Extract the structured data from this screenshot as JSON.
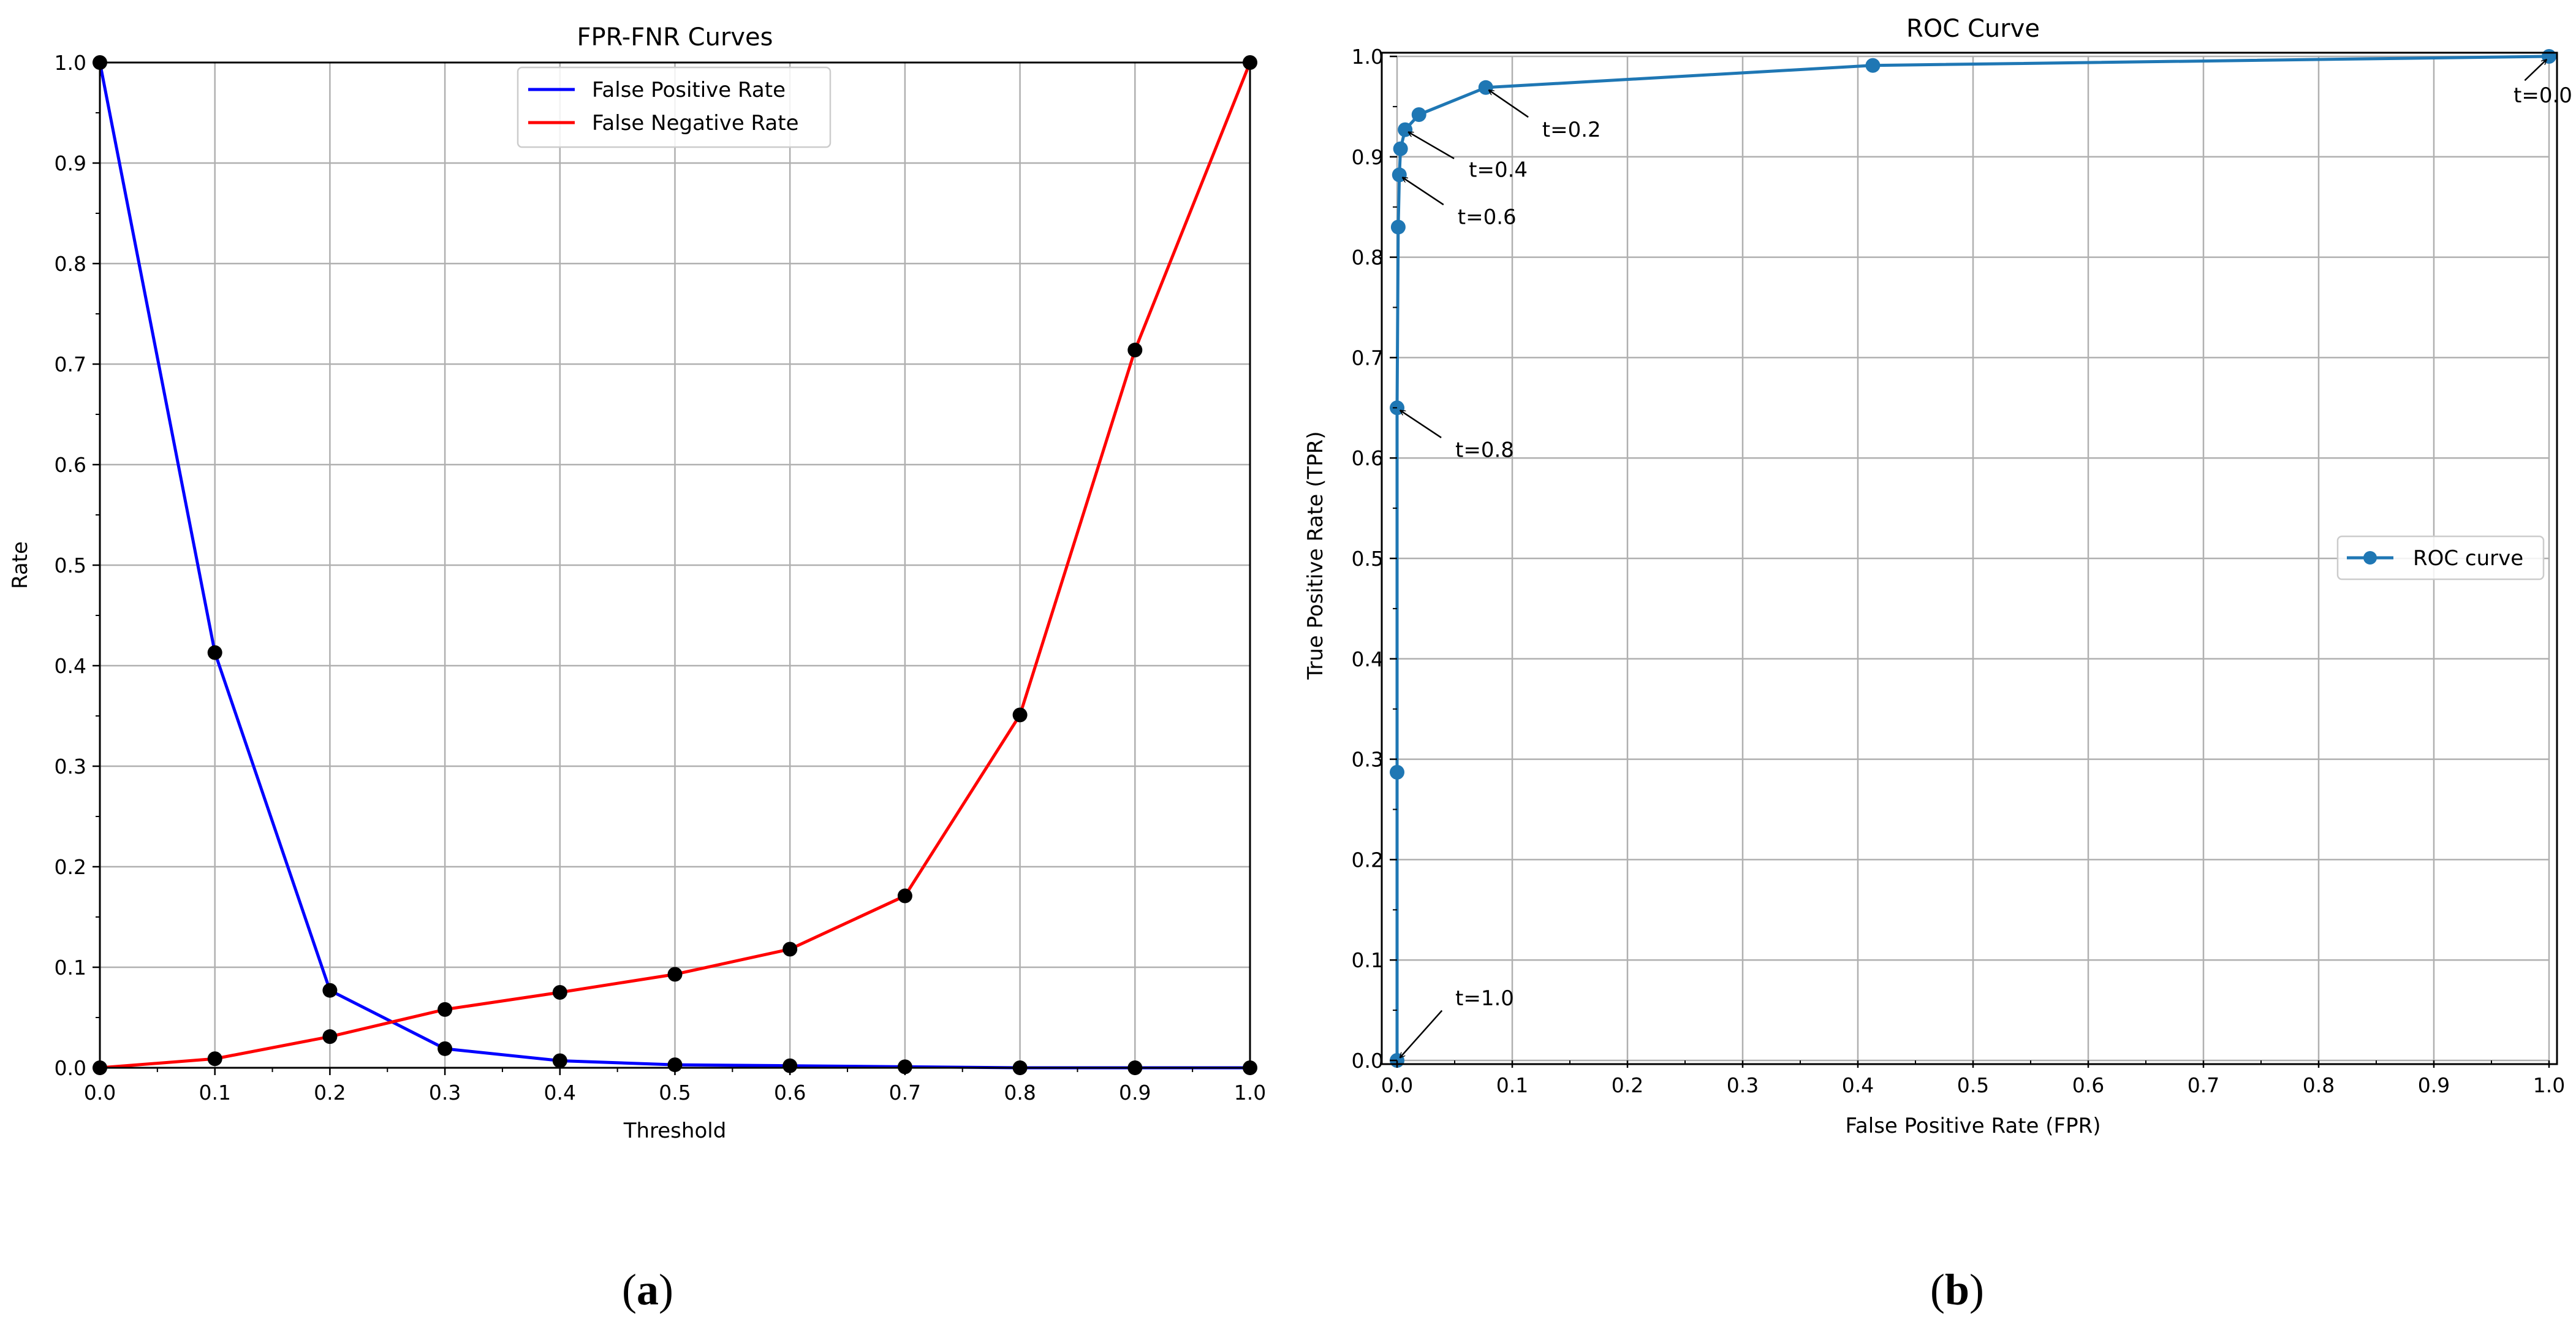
{
  "chart_data": [
    {
      "type": "line",
      "title": "FPR-FNR Curves",
      "xlabel": "Threshold",
      "ylabel": "Rate",
      "xlim": [
        0,
        1
      ],
      "ylim": [
        0,
        1
      ],
      "grid": true,
      "legend_position": "top-center",
      "x": [
        0.0,
        0.1,
        0.2,
        0.3,
        0.4,
        0.5,
        0.6,
        0.7,
        0.8,
        0.9,
        1.0
      ],
      "x_tick_labels": [
        "0.0",
        "0.1",
        "0.2",
        "0.3",
        "0.4",
        "0.5",
        "0.6",
        "0.7",
        "0.8",
        "0.9",
        "1.0"
      ],
      "y_tick_labels": [
        "0.0",
        "0.1",
        "0.2",
        "0.3",
        "0.4",
        "0.5",
        "0.6",
        "0.7",
        "0.8",
        "0.9",
        "1.0"
      ],
      "series": [
        {
          "name": "False Positive Rate",
          "color": "#0000ff",
          "values": [
            1.0,
            0.413,
            0.077,
            0.019,
            0.007,
            0.003,
            0.002,
            0.001,
            0.0,
            0.0,
            0.0
          ]
        },
        {
          "name": "False Negative Rate",
          "color": "#ff0000",
          "values": [
            0.0,
            0.009,
            0.031,
            0.058,
            0.075,
            0.093,
            0.118,
            0.171,
            0.351,
            0.714,
            1.0
          ]
        }
      ],
      "marker_color": "#000000",
      "caption": "(a)"
    },
    {
      "type": "line",
      "title": "ROC Curve",
      "xlabel": "False Positive Rate (FPR)",
      "ylabel": "True Positive Rate (TPR)",
      "xlim": [
        0,
        1
      ],
      "ylim": [
        0,
        1
      ],
      "grid": true,
      "legend_position": "center-right",
      "x_tick_labels": [
        "0.0",
        "0.1",
        "0.2",
        "0.3",
        "0.4",
        "0.5",
        "0.6",
        "0.7",
        "0.8",
        "0.9",
        "1.0"
      ],
      "y_tick_labels": [
        "0.0",
        "0.1",
        "0.2",
        "0.3",
        "0.4",
        "0.5",
        "0.6",
        "0.7",
        "0.8",
        "0.9",
        "1.0"
      ],
      "series": [
        {
          "name": "ROC curve",
          "color": "#1f77b4",
          "points": [
            {
              "x": 0.0,
              "y": 0.0
            },
            {
              "x": 0.0,
              "y": 0.287
            },
            {
              "x": 0.0,
              "y": 0.65
            },
            {
              "x": 0.001,
              "y": 0.83
            },
            {
              "x": 0.002,
              "y": 0.882
            },
            {
              "x": 0.003,
              "y": 0.908
            },
            {
              "x": 0.007,
              "y": 0.927
            },
            {
              "x": 0.019,
              "y": 0.942
            },
            {
              "x": 0.077,
              "y": 0.969
            },
            {
              "x": 0.413,
              "y": 0.991
            },
            {
              "x": 1.0,
              "y": 1.0
            }
          ]
        }
      ],
      "annotations": [
        {
          "text": "t=0.0",
          "x": 1.0,
          "y": 1.0
        },
        {
          "text": "t=0.2",
          "x": 0.077,
          "y": 0.969
        },
        {
          "text": "t=0.4",
          "x": 0.007,
          "y": 0.927
        },
        {
          "text": "t=0.6",
          "x": 0.002,
          "y": 0.882
        },
        {
          "text": "t=0.8",
          "x": 0.0,
          "y": 0.65
        },
        {
          "text": "t=1.0",
          "x": 0.0,
          "y": 0.0
        }
      ],
      "caption": "(b)"
    }
  ]
}
